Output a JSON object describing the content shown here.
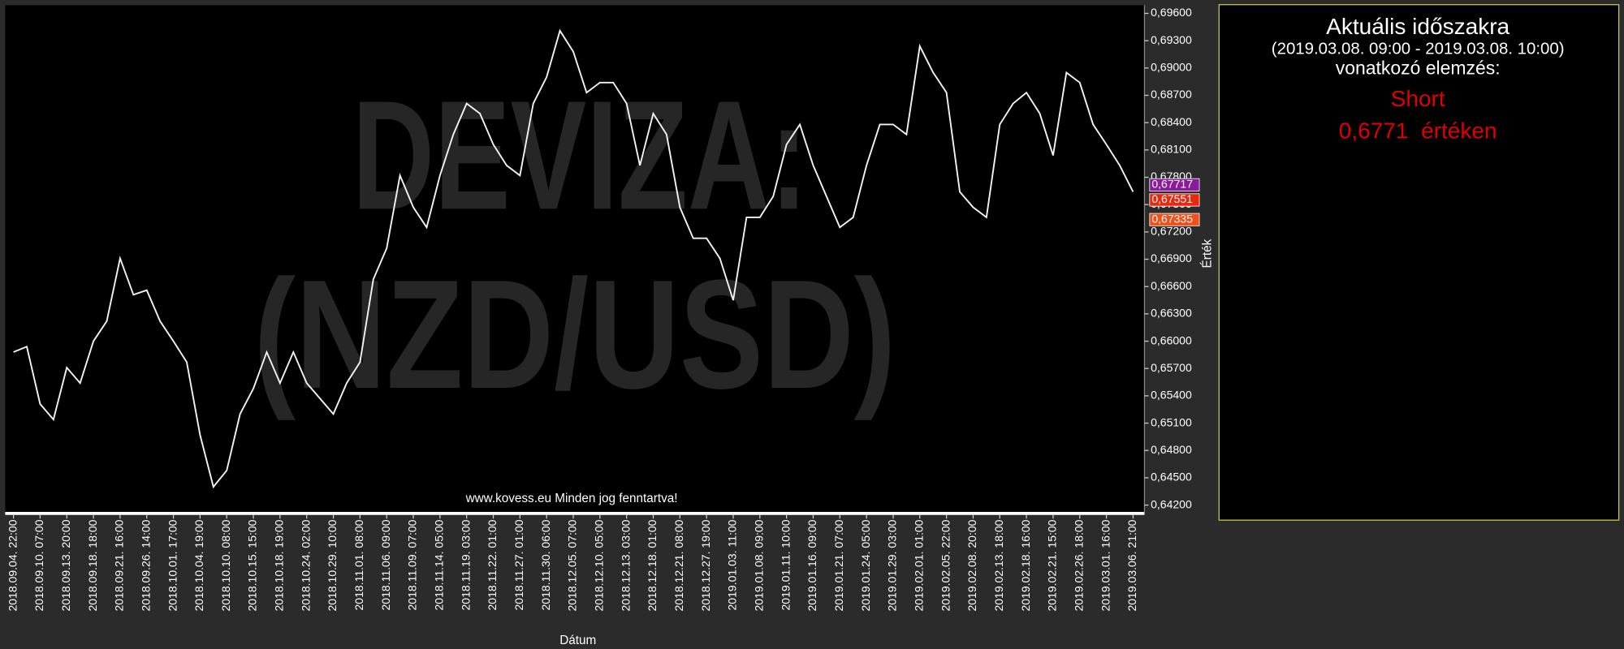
{
  "chart_data": {
    "type": "line",
    "watermark": [
      "DEVIZA:",
      "(NZD/USD)"
    ],
    "annotation": "www.kovess.eu Minden jog fenntartva!",
    "xlabel": "Dátum",
    "ylabel": "Érték",
    "color": "#f2f2f2",
    "categories": [
      "2018.09.04. 22:00",
      null,
      "2018.09.10. 07:00",
      null,
      "2018.09.13. 20:00",
      null,
      "2018.09.18. 18:00",
      null,
      "2018.09.21. 16:00",
      null,
      "2018.09.26. 14:00",
      null,
      "2018.10.01. 17:00",
      null,
      "2018.10.04. 19:00",
      null,
      "2018.10.10. 08:00",
      null,
      "2018.10.15. 15:00",
      null,
      "2018.10.18. 19:00",
      null,
      "2018.10.24. 02:00",
      null,
      "2018.10.29. 10:00",
      null,
      "2018.11.01. 08:00",
      null,
      "2018.11.06. 09:00",
      null,
      "2018.11.09. 07:00",
      null,
      "2018.11.14. 05:00",
      null,
      "2018.11.19. 03:00",
      null,
      "2018.11.22. 01:00",
      null,
      "2018.11.27. 01:00",
      null,
      "2018.11.30. 06:00",
      null,
      "2018.12.05. 07:00",
      null,
      "2018.12.10. 05:00",
      null,
      "2018.12.13. 03:00",
      null,
      "2018.12.18. 01:00",
      null,
      "2018.12.21. 08:00",
      null,
      "2018.12.27. 19:00",
      null,
      "2019.01.03. 11:00",
      null,
      "2019.01.08. 09:00",
      null,
      "2019.01.11. 10:00",
      null,
      "2019.01.16. 09:00",
      null,
      "2019.01.21. 07:00",
      null,
      "2019.01.24. 05:00",
      null,
      "2019.01.29. 03:00",
      null,
      "2019.02.01. 01:00",
      null,
      "2019.02.05. 22:00",
      null,
      "2019.02.08. 20:00",
      null,
      "2019.02.13. 18:00",
      null,
      "2019.02.18. 16:00",
      null,
      "2019.02.21. 15:00",
      null,
      "2019.02.26. 18:00",
      null,
      "2019.03.01. 16:00",
      null,
      "2019.03.06. 21:00"
    ],
    "values": [
      0.6588,
      0.6594,
      0.6531,
      0.6514,
      0.6571,
      0.6554,
      0.66,
      0.6622,
      0.6691,
      0.6651,
      0.6656,
      0.6622,
      0.66,
      0.6577,
      0.6497,
      0.644,
      0.6458,
      0.652,
      0.6548,
      0.6588,
      0.6554,
      0.6588,
      0.6554,
      0.6537,
      0.652,
      0.6554,
      0.6577,
      0.6668,
      0.6702,
      0.6782,
      0.6747,
      0.6725,
      0.6782,
      0.6827,
      0.6861,
      0.685,
      0.6816,
      0.6793,
      0.6782,
      0.6861,
      0.689,
      0.6941,
      0.6918,
      0.6873,
      0.6884,
      0.6884,
      0.6861,
      0.6793,
      0.685,
      0.6827,
      0.6747,
      0.6713,
      0.6713,
      0.6691,
      0.6645,
      0.6736,
      0.6736,
      0.6759,
      0.6816,
      0.6838,
      0.6793,
      0.6759,
      0.6725,
      0.6736,
      0.6793,
      0.6838,
      0.6838,
      0.6827,
      0.6924,
      0.6895,
      0.6873,
      0.6764,
      0.6747,
      0.6736,
      0.6838,
      0.6861,
      0.6873,
      0.685,
      0.6804,
      0.6895,
      0.6884,
      0.6838,
      0.6816,
      0.6793,
      0.6764
    ],
    "ylim": [
      0.6412,
      0.6969
    ],
    "yticks": [
      {
        "value": 0.642,
        "label": "0,64200"
      },
      {
        "value": 0.645,
        "label": "0,64500"
      },
      {
        "value": 0.648,
        "label": "0,64800"
      },
      {
        "value": 0.651,
        "label": "0,65100"
      },
      {
        "value": 0.654,
        "label": "0,65400"
      },
      {
        "value": 0.657,
        "label": "0,65700"
      },
      {
        "value": 0.66,
        "label": "0,66000"
      },
      {
        "value": 0.663,
        "label": "0,66300"
      },
      {
        "value": 0.666,
        "label": "0,66600"
      },
      {
        "value": 0.669,
        "label": "0,66900"
      },
      {
        "value": 0.672,
        "label": "0,67200"
      },
      {
        "value": 0.675,
        "label": "0,67500"
      },
      {
        "value": 0.678,
        "label": "0,67800"
      },
      {
        "value": 0.681,
        "label": "0,68100"
      },
      {
        "value": 0.684,
        "label": "0,68400"
      },
      {
        "value": 0.687,
        "label": "0,68700"
      },
      {
        "value": 0.69,
        "label": "0,69000"
      },
      {
        "value": 0.693,
        "label": "0,69300"
      },
      {
        "value": 0.696,
        "label": "0,69600"
      }
    ],
    "price_markers": [
      {
        "value": 0.67717,
        "label": "0,67717",
        "color": "#8b1a9c"
      },
      {
        "value": 0.67551,
        "label": "0,67551",
        "color": "#e8290e"
      },
      {
        "value": 0.67335,
        "label": "0,67335",
        "color": "#f0501a"
      }
    ]
  },
  "panel": {
    "title": "Aktuális időszakra",
    "period": "(2019.03.08. 09:00 - 2019.03.08. 10:00)",
    "subtitle": "vonatkozó elemzés:",
    "signal": "Short",
    "price": "0,6771  értéken"
  }
}
